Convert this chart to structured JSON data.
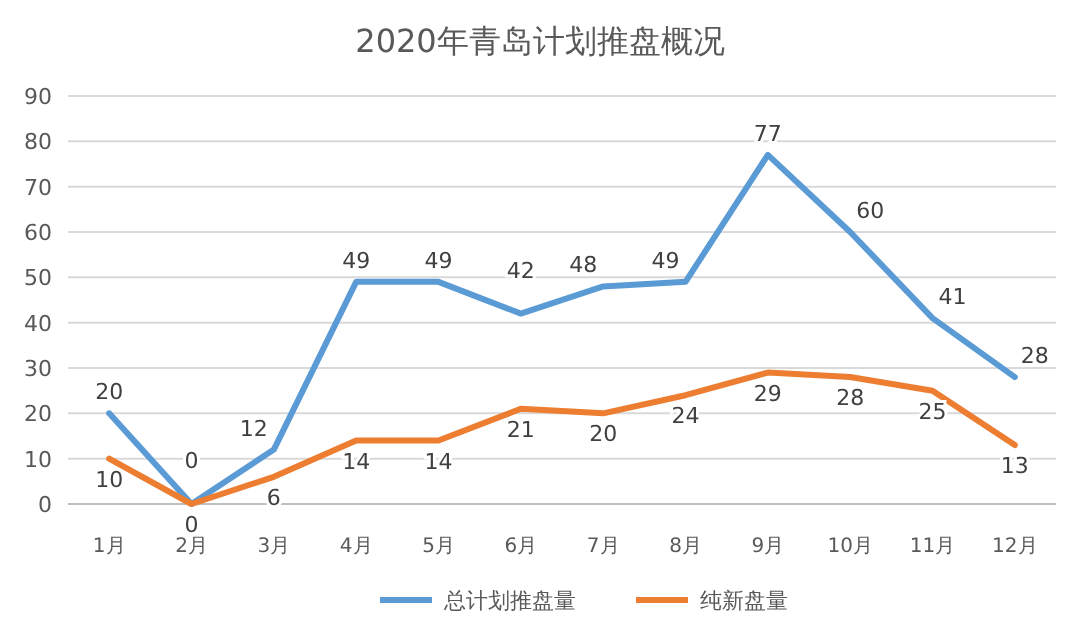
{
  "chart_data": {
    "type": "line",
    "title": "2020年青岛计划推盘概况",
    "categories": [
      "1月",
      "2月",
      "3月",
      "4月",
      "5月",
      "6月",
      "7月",
      "8月",
      "9月",
      "10月",
      "11月",
      "12月"
    ],
    "series": [
      {
        "name": "总计划推盘量",
        "color": "#5b9bd5",
        "values": [
          20,
          0,
          12,
          49,
          49,
          42,
          48,
          49,
          77,
          60,
          41,
          28
        ]
      },
      {
        "name": "纯新盘量",
        "color": "#ed7d31",
        "values": [
          10,
          0,
          6,
          14,
          14,
          21,
          20,
          24,
          29,
          28,
          25,
          13
        ]
      }
    ],
    "ylim": [
      0,
      90
    ],
    "yticks": [
      0,
      10,
      20,
      30,
      40,
      50,
      60,
      70,
      80,
      90
    ],
    "grid": "y",
    "legend": "bottom",
    "data_labels": true,
    "marker": "none",
    "line_style": "solid"
  }
}
